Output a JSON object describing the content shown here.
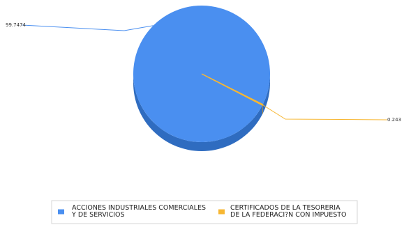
{
  "chart_data": {
    "type": "pie",
    "style": "3d",
    "categories": [
      "ACCIONES INDUSTRIALES COMERCIALES Y DE SERVICIOS",
      "CERTIFICADOS DE LA TESORERIA DE LA FEDERACI?N CON IMPUESTO"
    ],
    "values": [
      99.7474,
      0.243
    ],
    "value_labels": [
      "99.7474",
      "0.243"
    ],
    "legend": {
      "placement": "bottom",
      "entries": [
        {
          "line1": "ACCIONES INDUSTRIALES COMERCIALES",
          "line2": "Y DE SERVICIOS"
        },
        {
          "line1": "CERTIFICADOS DE LA TESORERIA",
          "line2": "DE LA FEDERACI?N CON IMPUESTO"
        }
      ]
    },
    "colors": [
      "#4a8ff0",
      "#f7b733"
    ],
    "side_colors": [
      "#2f6cc0",
      "#d4951a"
    ],
    "title": ""
  }
}
